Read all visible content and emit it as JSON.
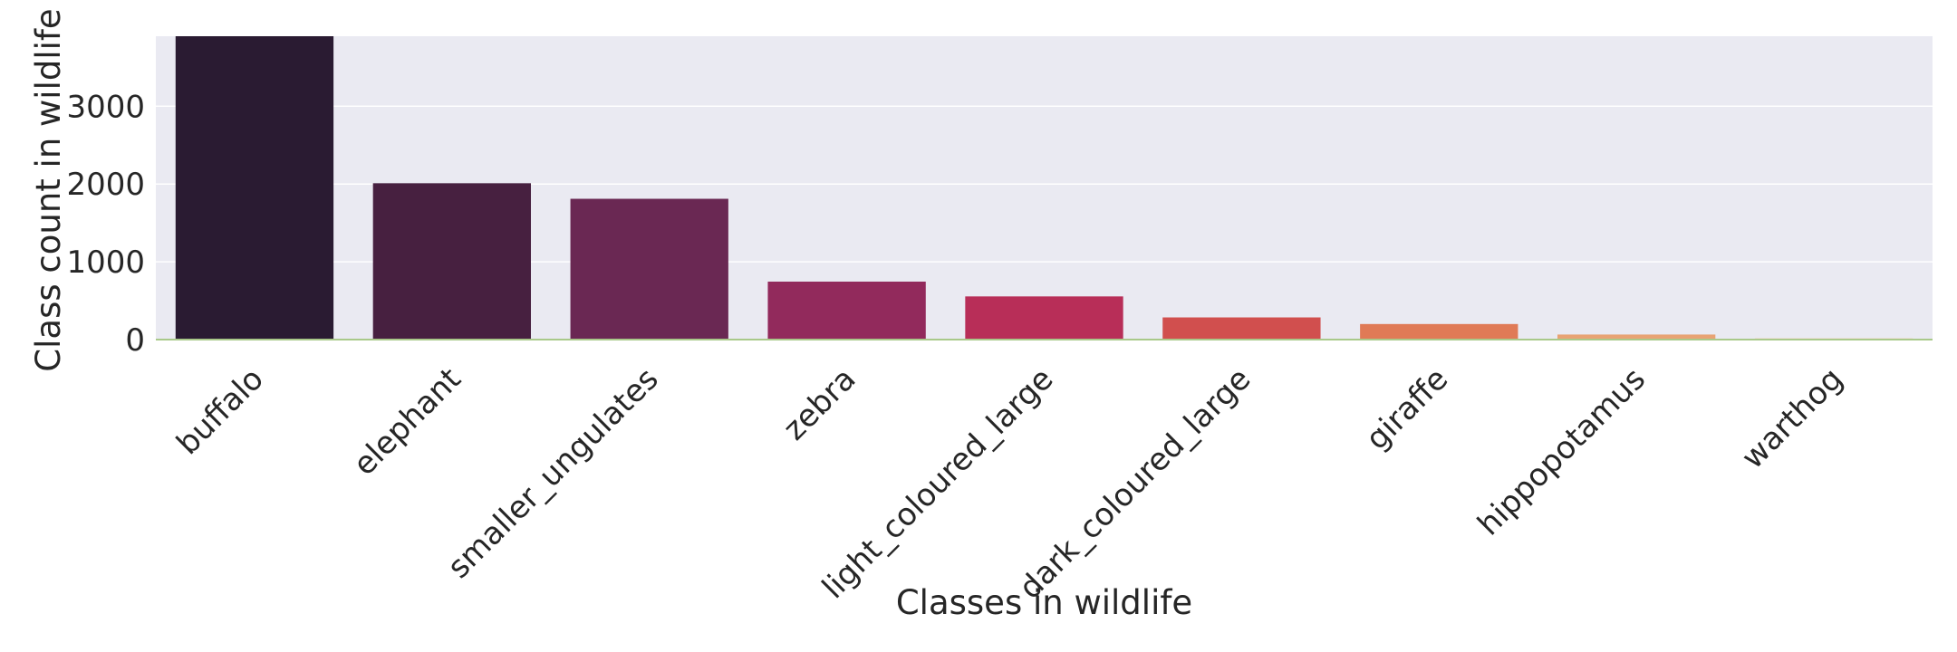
{
  "chart_data": {
    "type": "bar",
    "categories": [
      "buffalo",
      "elephant",
      "smaller_ungulates",
      "zebra",
      "light_coloured_large",
      "dark_coloured_large",
      "giraffe",
      "hippopotamus",
      "warthog"
    ],
    "values": [
      3900,
      2010,
      1810,
      745,
      555,
      285,
      200,
      65,
      15
    ],
    "colors": [
      "#2a1b32",
      "#472040",
      "#6a2853",
      "#922a5c",
      "#b82e58",
      "#d14f4e",
      "#e07a56",
      "#e8a374",
      "#efc89b"
    ],
    "xlabel": "Classes in wildlife",
    "ylabel": "Class count in wildlife",
    "yticks": [
      0,
      1000,
      2000,
      3000
    ],
    "ylim": [
      0,
      3900
    ],
    "grid": true,
    "background": "#eaeaf2",
    "baseline_color": "#a9c98a"
  }
}
